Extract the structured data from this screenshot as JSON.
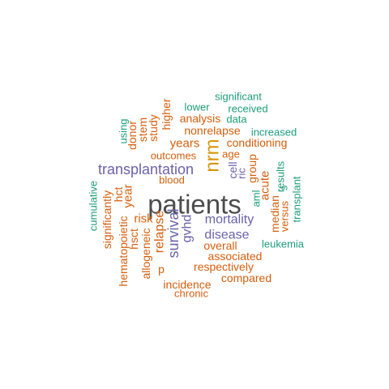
{
  "colors": {
    "grey": "#4d4d4d",
    "gold": "#d5960b",
    "purple": "#6b62aa",
    "orange": "#d55e0c",
    "teal": "#1b9e77"
  },
  "words": [
    {
      "text": "patients",
      "color": "grey"
    },
    {
      "text": "nrm",
      "color": "gold"
    },
    {
      "text": "transplantation",
      "color": "purple"
    },
    {
      "text": "survival",
      "color": "purple"
    },
    {
      "text": "gvhd",
      "color": "purple"
    },
    {
      "text": "mortality",
      "color": "purple"
    },
    {
      "text": "disease",
      "color": "purple"
    },
    {
      "text": "years",
      "color": "orange"
    },
    {
      "text": "relapse",
      "color": "orange"
    },
    {
      "text": "year",
      "color": "orange"
    },
    {
      "text": "acute",
      "color": "orange"
    },
    {
      "text": "risk",
      "color": "orange"
    },
    {
      "text": "nonrelapse",
      "color": "orange"
    },
    {
      "text": "analysis",
      "color": "orange"
    },
    {
      "text": "conditioning",
      "color": "orange"
    },
    {
      "text": "associated",
      "color": "orange"
    },
    {
      "text": "respectively",
      "color": "orange"
    },
    {
      "text": "overall",
      "color": "orange"
    },
    {
      "text": "group",
      "color": "orange"
    },
    {
      "text": "outcomes",
      "color": "orange"
    },
    {
      "text": "age",
      "color": "orange"
    },
    {
      "text": "allogeneic",
      "color": "orange"
    },
    {
      "text": "hct",
      "color": "orange"
    },
    {
      "text": "higher",
      "color": "orange"
    },
    {
      "text": "study",
      "color": "orange"
    },
    {
      "text": "stem",
      "color": "orange"
    },
    {
      "text": "donor",
      "color": "orange"
    },
    {
      "text": "incidence",
      "color": "orange"
    },
    {
      "text": "median",
      "color": "orange"
    },
    {
      "text": "hsct",
      "color": "orange"
    },
    {
      "text": "hematopoietic",
      "color": "orange"
    },
    {
      "text": "significantly",
      "color": "orange"
    },
    {
      "text": "blood",
      "color": "orange"
    },
    {
      "text": "compared",
      "color": "orange"
    },
    {
      "text": "chronic",
      "color": "orange"
    },
    {
      "text": "p",
      "color": "orange"
    },
    {
      "text": "versus",
      "color": "orange"
    },
    {
      "text": "cell",
      "color": "purple"
    },
    {
      "text": "ric",
      "color": "purple"
    },
    {
      "text": "aml",
      "color": "teal"
    },
    {
      "text": "s",
      "color": "teal"
    },
    {
      "text": "significant",
      "color": "teal"
    },
    {
      "text": "lower",
      "color": "teal"
    },
    {
      "text": "received",
      "color": "teal"
    },
    {
      "text": "data",
      "color": "teal"
    },
    {
      "text": "increased",
      "color": "teal"
    },
    {
      "text": "using",
      "color": "teal"
    },
    {
      "text": "results",
      "color": "teal"
    },
    {
      "text": "transplant",
      "color": "teal"
    },
    {
      "text": "cumulative",
      "color": "teal"
    },
    {
      "text": "leukemia",
      "color": "teal"
    }
  ]
}
